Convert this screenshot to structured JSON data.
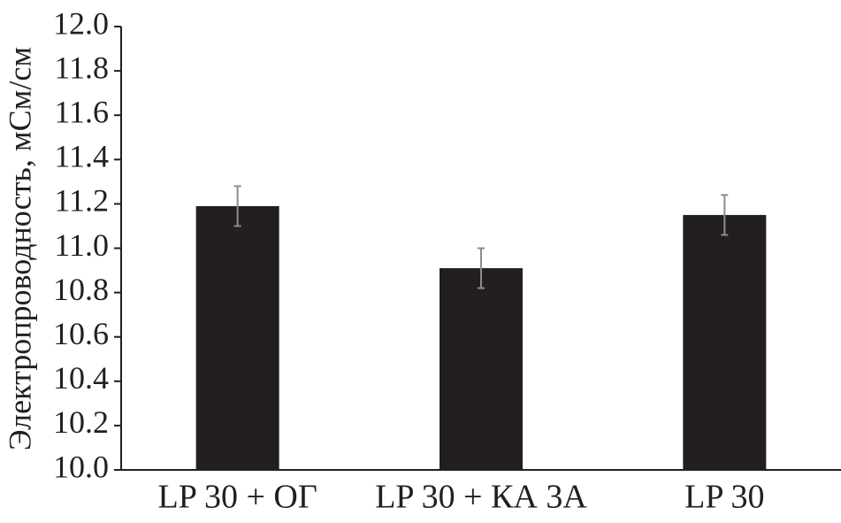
{
  "chart_data": {
    "type": "bar",
    "y_label": "Электропроводность, мСм/см",
    "categories": [
      "LP 30 + ОГ",
      "LP 30 + КА 3А",
      "LP 30"
    ],
    "values": [
      11.19,
      10.91,
      11.15
    ],
    "errors": [
      0.09,
      0.09,
      0.09
    ],
    "color": "#231f20",
    "error_color": "#8c8c8c",
    "ylim": [
      10.0,
      12.0
    ],
    "yticks": [
      {
        "value": 10.0,
        "label": "10.0"
      },
      10.2,
      10.4,
      10.6,
      10.8,
      {
        "value": 11.0,
        "label": "11.0"
      },
      11.2,
      11.4,
      11.6,
      11.8,
      {
        "value": 12.0,
        "label": "12.0"
      }
    ],
    "grid": false
  }
}
